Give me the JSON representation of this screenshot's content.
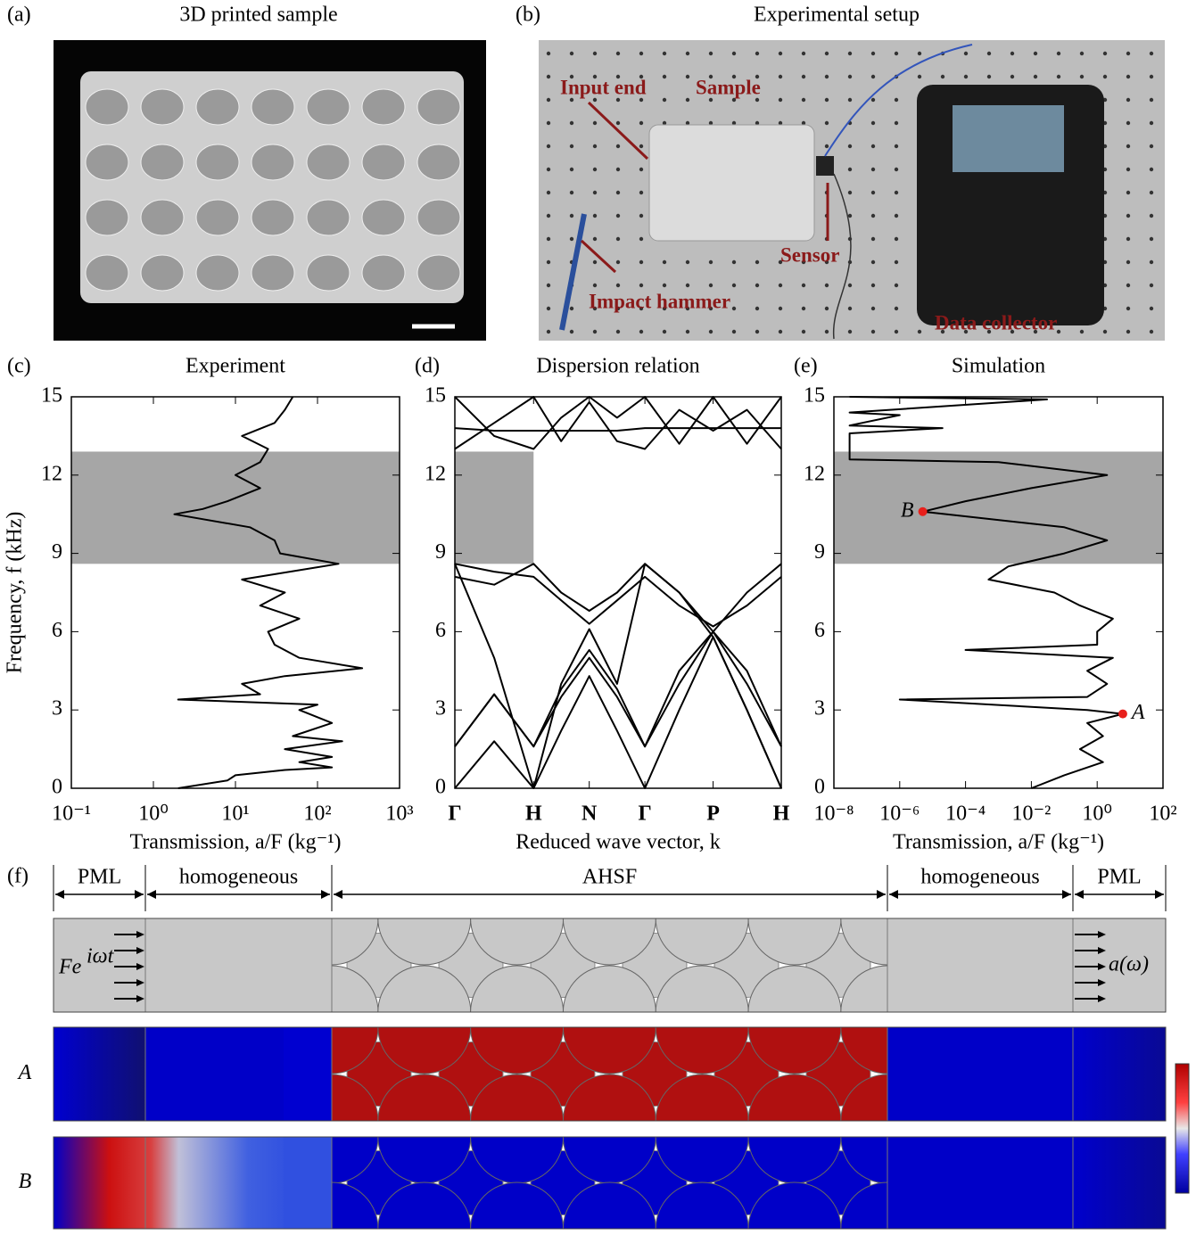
{
  "panel_a": {
    "label": "(a)",
    "title": "3D printed sample"
  },
  "panel_b": {
    "label": "(b)",
    "title": "Experimental setup",
    "annotations": [
      "Input end",
      "Sample",
      "Sensor",
      "Impact hammer",
      "Data collector"
    ]
  },
  "chart_data": [
    {
      "type": "line",
      "panel_label": "(c)",
      "title": "Experiment",
      "ylabel": "Frequency, f (kHz)",
      "xlabel": "Transmission, a/F (kg⁻¹)",
      "xscale": "log",
      "xlim": [
        0.1,
        1000
      ],
      "ylim": [
        0,
        15
      ],
      "xticks": [
        {
          "value": 0.1,
          "label": "10⁻¹"
        },
        {
          "value": 1,
          "label": "10⁰"
        },
        {
          "value": 10,
          "label": "10¹"
        },
        {
          "value": 100,
          "label": "10²"
        },
        {
          "value": 1000,
          "label": "10³"
        }
      ],
      "yticks": [
        0,
        3,
        6,
        9,
        12,
        15
      ],
      "shaded_band": [
        8.6,
        12.9
      ],
      "shaded_color": "#a6a6a6",
      "series": [
        {
          "color": "#000000",
          "x": [
            2,
            8,
            10,
            40,
            150,
            60,
            150,
            40,
            200,
            50,
            150,
            60,
            100,
            2,
            20,
            12,
            40,
            350,
            60,
            30,
            25,
            60,
            20,
            40,
            12,
            180,
            35,
            30,
            15,
            1.8,
            4,
            8,
            20,
            10,
            20,
            25,
            12,
            30,
            40,
            50
          ],
          "values": [
            0,
            0.3,
            0.5,
            0.7,
            0.8,
            1.0,
            1.2,
            1.5,
            1.8,
            2.0,
            2.5,
            3.0,
            3.2,
            3.4,
            3.6,
            4.0,
            4.3,
            4.6,
            5.0,
            5.5,
            6.0,
            6.5,
            7.0,
            7.5,
            8.0,
            8.6,
            9.0,
            9.5,
            10.0,
            10.5,
            10.7,
            11.0,
            11.5,
            12.0,
            12.5,
            13.0,
            13.5,
            14.0,
            14.5,
            15.0
          ]
        }
      ]
    },
    {
      "type": "line",
      "panel_label": "(d)",
      "title": "Dispersion relation",
      "xlabel": "Reduced wave vector, k",
      "xlim": [
        0,
        4.146
      ],
      "ylim": [
        0,
        15
      ],
      "xticks": [
        {
          "value": 0,
          "label": "Γ"
        },
        {
          "value": 1,
          "label": "H"
        },
        {
          "value": 1.707,
          "label": "N"
        },
        {
          "value": 2.414,
          "label": "Γ"
        },
        {
          "value": 3.28,
          "label": "P"
        },
        {
          "value": 4.146,
          "label": "H"
        }
      ],
      "yticks": [
        0,
        3,
        6,
        9,
        12,
        15
      ],
      "shaded_band": [
        8.6,
        12.9
      ],
      "shaded_band_x": [
        0,
        1
      ],
      "shaded_color": "#a6a6a6",
      "x": [
        0,
        0.5,
        1,
        1.35,
        1.707,
        2.06,
        2.414,
        2.85,
        3.28,
        3.71,
        4.146
      ],
      "series": [
        {
          "color": "#000000",
          "values": [
            0,
            1.8,
            0,
            2.2,
            4.3,
            2.2,
            0,
            3,
            5.8,
            3,
            0
          ]
        },
        {
          "color": "#000000",
          "values": [
            1.6,
            3.6,
            1.6,
            3.5,
            5.0,
            3.5,
            1.6,
            4,
            6,
            4,
            1.6
          ]
        },
        {
          "color": "#000000",
          "values": [
            1.6,
            3.6,
            1.6,
            3.8,
            5.3,
            3.8,
            1.6,
            4.5,
            6,
            4.5,
            1.6
          ]
        },
        {
          "color": "#000000",
          "values": [
            8.6,
            5,
            0,
            4,
            6.1,
            4,
            8.6,
            7.5,
            5.8,
            3,
            0
          ]
        },
        {
          "color": "#000000",
          "values": [
            8.1,
            7.8,
            8.6,
            7.5,
            6.8,
            7.5,
            8.6,
            7.5,
            6,
            7.5,
            8.6
          ]
        },
        {
          "color": "#000000",
          "values": [
            8.6,
            8.3,
            8.1,
            7.2,
            6.3,
            7.2,
            8.1,
            7,
            6.2,
            7,
            8.1
          ]
        },
        {
          "color": "#000000",
          "values": [
            13,
            14,
            15,
            13.3,
            14.8,
            13.3,
            13,
            14.5,
            13.7,
            14.5,
            13
          ]
        },
        {
          "color": "#000000",
          "values": [
            13.8,
            13.7,
            13.7,
            13.7,
            13.7,
            13.7,
            13.8,
            13.8,
            13.8,
            13.8,
            13.8
          ]
        },
        {
          "color": "#000000",
          "values": [
            15,
            13.5,
            13,
            14.2,
            15,
            14.2,
            15,
            13.2,
            15,
            13.2,
            15
          ]
        }
      ]
    },
    {
      "type": "line",
      "panel_label": "(e)",
      "title": "Simulation",
      "xlabel": "Transmission, a/F (kg⁻¹)",
      "xscale": "log",
      "xlim": [
        1e-08,
        100
      ],
      "ylim": [
        0,
        15
      ],
      "xticks": [
        {
          "value": 1e-08,
          "label": "10⁻⁸"
        },
        {
          "value": 1e-06,
          "label": "10⁻⁶"
        },
        {
          "value": 0.0001,
          "label": "10⁻⁴"
        },
        {
          "value": 0.01,
          "label": "10⁻²"
        },
        {
          "value": 1,
          "label": "10⁰"
        },
        {
          "value": 100,
          "label": "10²"
        }
      ],
      "yticks": [
        0,
        3,
        6,
        9,
        12,
        15
      ],
      "shaded_band": [
        8.6,
        12.9
      ],
      "shaded_color": "#a6a6a6",
      "series": [
        {
          "color": "#000000",
          "x": [
            0.01,
            0.1,
            1.5,
            0.3,
            1.5,
            0.5,
            6,
            0.5,
            1e-06,
            0.5,
            2,
            0.5,
            3,
            0.0001,
            1,
            1,
            3,
            0.3,
            0.05,
            0.0005,
            0.002,
            0.1,
            2,
            0.1,
            5e-06,
            0.0001,
            0.01,
            2,
            0.001,
            3e-08,
            3e-08,
            2e-05,
            3e-08,
            1e-06,
            3e-08,
            0.03,
            3e-08
          ],
          "values": [
            0,
            0.5,
            1.0,
            1.5,
            2.0,
            2.5,
            2.85,
            3.0,
            3.4,
            3.5,
            4.0,
            4.5,
            5.0,
            5.3,
            5.5,
            6.0,
            6.5,
            7.0,
            7.5,
            8.0,
            8.5,
            9.0,
            9.5,
            10.0,
            10.6,
            11.0,
            11.5,
            12.0,
            12.5,
            12.6,
            13.6,
            13.8,
            13.9,
            14.3,
            14.4,
            14.9,
            15.0
          ]
        }
      ],
      "points": [
        {
          "label": "A",
          "x": 6,
          "y": 2.85,
          "color": "#e8201c"
        },
        {
          "label": "B",
          "x": 5e-06,
          "y": 10.6,
          "color": "#e8201c"
        }
      ]
    }
  ],
  "panel_f": {
    "label": "(f)",
    "regions": [
      "PML",
      "homogeneous",
      "AHSF",
      "homogeneous",
      "PML"
    ],
    "source": "Fe",
    "source_exponent": "iωt",
    "output": "a(ω)",
    "rows": [
      "A",
      "B"
    ]
  }
}
